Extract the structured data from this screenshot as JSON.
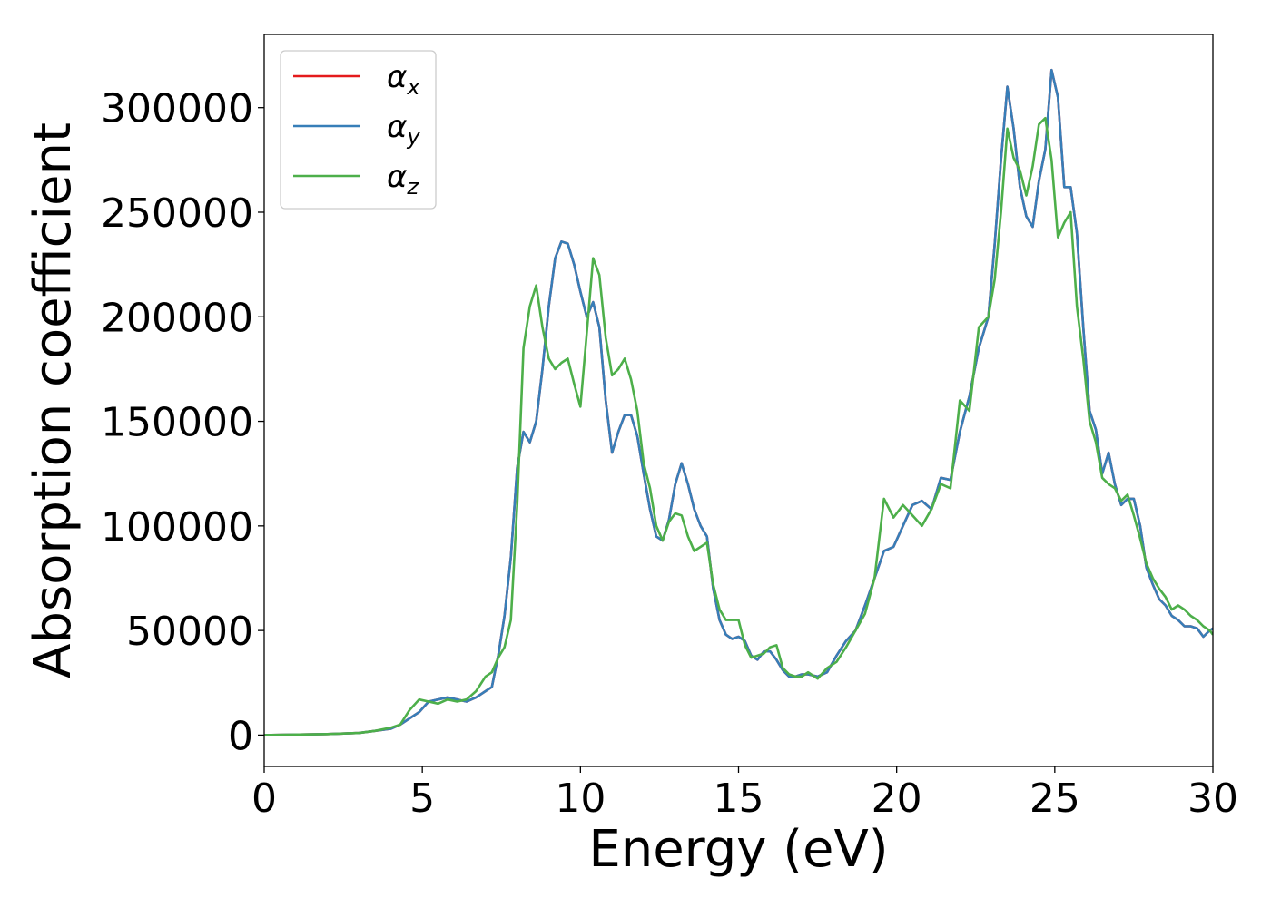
{
  "chart_data": {
    "type": "line",
    "title": "",
    "xlabel": "Energy (eV)",
    "ylabel": "Absorption coefficient",
    "xlim": [
      0,
      30
    ],
    "ylim": [
      -15000,
      335000
    ],
    "xticks": [
      0,
      5,
      10,
      15,
      20,
      25,
      30
    ],
    "yticks": [
      0,
      50000,
      100000,
      150000,
      200000,
      250000,
      300000
    ],
    "grid": false,
    "legend_position": "top-left",
    "series": [
      {
        "name": "αx",
        "legend_base": "α",
        "legend_sub": "x",
        "color": "#e41a1c",
        "x": [
          0,
          2,
          3,
          3.5,
          4,
          4.3,
          4.6,
          4.9,
          5.2,
          5.5,
          5.8,
          6.1,
          6.4,
          6.7,
          7.0,
          7.2,
          7.4,
          7.6,
          7.8,
          8.0,
          8.2,
          8.4,
          8.6,
          8.8,
          9.0,
          9.2,
          9.4,
          9.6,
          9.8,
          10.0,
          10.2,
          10.4,
          10.6,
          10.8,
          11.0,
          11.2,
          11.4,
          11.6,
          11.8,
          12.0,
          12.2,
          12.4,
          12.6,
          12.8,
          13.0,
          13.2,
          13.4,
          13.6,
          13.8,
          14.0,
          14.2,
          14.4,
          14.6,
          14.8,
          15.0,
          15.2,
          15.4,
          15.6,
          15.8,
          16.0,
          16.2,
          16.4,
          16.6,
          16.8,
          17.0,
          17.2,
          17.5,
          17.8,
          18.1,
          18.4,
          18.7,
          19.0,
          19.3,
          19.6,
          19.9,
          20.2,
          20.5,
          20.8,
          21.1,
          21.4,
          21.7,
          22.0,
          22.3,
          22.6,
          22.9,
          23.1,
          23.3,
          23.5,
          23.7,
          23.9,
          24.1,
          24.3,
          24.5,
          24.7,
          24.9,
          25.1,
          25.3,
          25.5,
          25.7,
          25.9,
          26.1,
          26.3,
          26.5,
          26.7,
          26.9,
          27.1,
          27.3,
          27.5,
          27.7,
          27.9,
          28.1,
          28.3,
          28.5,
          28.7,
          28.9,
          29.1,
          29.3,
          29.5,
          29.7,
          29.9,
          30.0
        ],
        "values": [
          0,
          500,
          1000,
          2000,
          3000,
          5000,
          8000,
          11000,
          16000,
          17000,
          18000,
          17000,
          16000,
          18000,
          21000,
          23000,
          38000,
          57000,
          85000,
          128000,
          145000,
          140000,
          150000,
          175000,
          205000,
          228000,
          236000,
          235000,
          225000,
          212000,
          200000,
          207000,
          195000,
          160000,
          135000,
          145000,
          153000,
          153000,
          143000,
          125000,
          108000,
          95000,
          93000,
          103000,
          120000,
          130000,
          120000,
          108000,
          100000,
          95000,
          70000,
          55000,
          48000,
          46000,
          47000,
          45000,
          38000,
          36000,
          40000,
          40000,
          36000,
          31000,
          28000,
          28000,
          29000,
          29000,
          28000,
          30000,
          38000,
          45000,
          50000,
          62000,
          75000,
          88000,
          90000,
          100000,
          110000,
          112000,
          108000,
          123000,
          122000,
          145000,
          162000,
          185000,
          200000,
          235000,
          275000,
          310000,
          290000,
          262000,
          248000,
          243000,
          265000,
          280000,
          318000,
          305000,
          262000,
          262000,
          240000,
          195000,
          155000,
          146000,
          125000,
          135000,
          120000,
          110000,
          113000,
          113000,
          100000,
          80000,
          72000,
          65000,
          62000,
          57000,
          55000,
          52000,
          52000,
          51000,
          47000,
          50000,
          51000
        ]
      },
      {
        "name": "αy",
        "legend_base": "α",
        "legend_sub": "y",
        "color": "#377eb8",
        "x": [
          0,
          2,
          3,
          3.5,
          4,
          4.3,
          4.6,
          4.9,
          5.2,
          5.5,
          5.8,
          6.1,
          6.4,
          6.7,
          7.0,
          7.2,
          7.4,
          7.6,
          7.8,
          8.0,
          8.2,
          8.4,
          8.6,
          8.8,
          9.0,
          9.2,
          9.4,
          9.6,
          9.8,
          10.0,
          10.2,
          10.4,
          10.6,
          10.8,
          11.0,
          11.2,
          11.4,
          11.6,
          11.8,
          12.0,
          12.2,
          12.4,
          12.6,
          12.8,
          13.0,
          13.2,
          13.4,
          13.6,
          13.8,
          14.0,
          14.2,
          14.4,
          14.6,
          14.8,
          15.0,
          15.2,
          15.4,
          15.6,
          15.8,
          16.0,
          16.2,
          16.4,
          16.6,
          16.8,
          17.0,
          17.2,
          17.5,
          17.8,
          18.1,
          18.4,
          18.7,
          19.0,
          19.3,
          19.6,
          19.9,
          20.2,
          20.5,
          20.8,
          21.1,
          21.4,
          21.7,
          22.0,
          22.3,
          22.6,
          22.9,
          23.1,
          23.3,
          23.5,
          23.7,
          23.9,
          24.1,
          24.3,
          24.5,
          24.7,
          24.9,
          25.1,
          25.3,
          25.5,
          25.7,
          25.9,
          26.1,
          26.3,
          26.5,
          26.7,
          26.9,
          27.1,
          27.3,
          27.5,
          27.7,
          27.9,
          28.1,
          28.3,
          28.5,
          28.7,
          28.9,
          29.1,
          29.3,
          29.5,
          29.7,
          29.9,
          30.0
        ],
        "values": [
          0,
          500,
          1000,
          2000,
          3000,
          5000,
          8000,
          11000,
          16000,
          17000,
          18000,
          17000,
          16000,
          18000,
          21000,
          23000,
          38000,
          57000,
          85000,
          128000,
          145000,
          140000,
          150000,
          175000,
          205000,
          228000,
          236000,
          235000,
          225000,
          212000,
          200000,
          207000,
          195000,
          160000,
          135000,
          145000,
          153000,
          153000,
          143000,
          125000,
          108000,
          95000,
          93000,
          103000,
          120000,
          130000,
          120000,
          108000,
          100000,
          95000,
          70000,
          55000,
          48000,
          46000,
          47000,
          45000,
          38000,
          36000,
          40000,
          40000,
          36000,
          31000,
          28000,
          28000,
          29000,
          29000,
          28000,
          30000,
          38000,
          45000,
          50000,
          62000,
          75000,
          88000,
          90000,
          100000,
          110000,
          112000,
          108000,
          123000,
          122000,
          145000,
          162000,
          185000,
          200000,
          235000,
          275000,
          310000,
          290000,
          262000,
          248000,
          243000,
          265000,
          280000,
          318000,
          305000,
          262000,
          262000,
          240000,
          195000,
          155000,
          146000,
          125000,
          135000,
          120000,
          110000,
          113000,
          113000,
          100000,
          80000,
          72000,
          65000,
          62000,
          57000,
          55000,
          52000,
          52000,
          51000,
          47000,
          50000,
          51000
        ]
      },
      {
        "name": "αz",
        "legend_base": "α",
        "legend_sub": "z",
        "color": "#4daf4a",
        "x": [
          0,
          2,
          3,
          3.5,
          4,
          4.3,
          4.6,
          4.9,
          5.2,
          5.5,
          5.8,
          6.1,
          6.4,
          6.7,
          7.0,
          7.2,
          7.4,
          7.6,
          7.8,
          8.0,
          8.2,
          8.4,
          8.6,
          8.8,
          9.0,
          9.2,
          9.4,
          9.6,
          9.8,
          10.0,
          10.2,
          10.4,
          10.6,
          10.8,
          11.0,
          11.2,
          11.4,
          11.6,
          11.8,
          12.0,
          12.2,
          12.4,
          12.6,
          12.8,
          13.0,
          13.2,
          13.4,
          13.6,
          13.8,
          14.0,
          14.2,
          14.4,
          14.6,
          14.8,
          15.0,
          15.2,
          15.4,
          15.6,
          15.8,
          16.0,
          16.2,
          16.4,
          16.6,
          16.8,
          17.0,
          17.2,
          17.5,
          17.8,
          18.1,
          18.4,
          18.7,
          19.0,
          19.3,
          19.6,
          19.9,
          20.2,
          20.5,
          20.8,
          21.1,
          21.4,
          21.7,
          22.0,
          22.3,
          22.6,
          22.9,
          23.1,
          23.3,
          23.5,
          23.7,
          23.9,
          24.1,
          24.3,
          24.5,
          24.7,
          24.9,
          25.1,
          25.3,
          25.5,
          25.7,
          25.9,
          26.1,
          26.3,
          26.5,
          26.7,
          26.9,
          27.1,
          27.3,
          27.5,
          27.7,
          27.9,
          28.1,
          28.3,
          28.5,
          28.7,
          28.9,
          29.1,
          29.3,
          29.5,
          29.7,
          29.9,
          30.0
        ],
        "values": [
          0,
          500,
          1000,
          2000,
          3500,
          5000,
          12000,
          17000,
          16000,
          15000,
          17000,
          16000,
          17000,
          21000,
          28000,
          30000,
          37000,
          42000,
          55000,
          110000,
          185000,
          205000,
          215000,
          195000,
          180000,
          175000,
          178000,
          180000,
          168000,
          157000,
          192000,
          228000,
          220000,
          190000,
          172000,
          175000,
          180000,
          170000,
          155000,
          130000,
          118000,
          100000,
          93000,
          102000,
          106000,
          105000,
          95000,
          88000,
          90000,
          92000,
          72000,
          60000,
          55000,
          55000,
          55000,
          43000,
          37000,
          38000,
          39000,
          42000,
          43000,
          32000,
          29000,
          28000,
          28000,
          30000,
          27000,
          32000,
          35000,
          42000,
          50000,
          58000,
          75000,
          113000,
          104000,
          110000,
          105000,
          100000,
          108000,
          120000,
          118000,
          160000,
          155000,
          195000,
          200000,
          218000,
          250000,
          290000,
          276000,
          270000,
          258000,
          272000,
          292000,
          295000,
          275000,
          238000,
          245000,
          250000,
          205000,
          180000,
          150000,
          140000,
          123000,
          120000,
          118000,
          112000,
          115000,
          105000,
          94000,
          82000,
          75000,
          70000,
          66000,
          60000,
          62000,
          60000,
          57000,
          55000,
          52000,
          50000,
          48000
        ]
      }
    ]
  }
}
